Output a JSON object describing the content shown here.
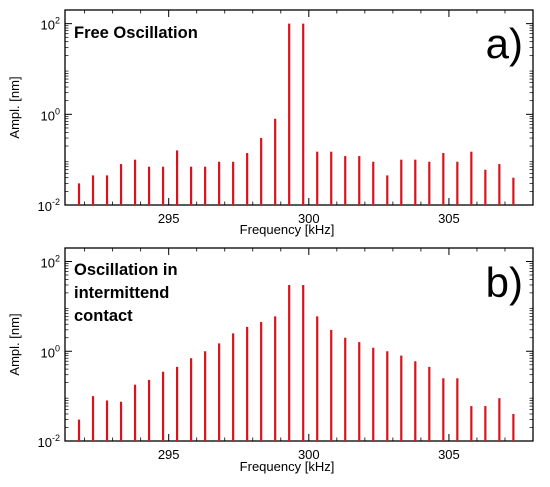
{
  "chart_data": [
    {
      "type": "bar",
      "panel_label": "a)",
      "annotation": "Free Oscillation",
      "xlabel": "Frequency [kHz]",
      "ylabel": "Ampl. [nm]",
      "yscale": "log",
      "ylim": [
        0.01,
        200
      ],
      "xlim": [
        291.3,
        308.0
      ],
      "xticks": [
        295,
        300,
        305
      ],
      "xtick_labels": [
        "295",
        "300",
        "305"
      ],
      "yticks": [
        0.01,
        1,
        100
      ],
      "ytick_labels": [
        {
          "base": "10",
          "exp": "-2"
        },
        {
          "base": "10",
          "exp": "0"
        },
        {
          "base": "10",
          "exp": "2"
        }
      ],
      "grid": false,
      "bar_color": "#d9121b",
      "x": [
        291.8,
        292.3,
        292.8,
        293.3,
        293.8,
        294.3,
        294.8,
        295.3,
        295.8,
        296.3,
        296.8,
        297.3,
        297.8,
        298.3,
        298.8,
        299.3,
        299.8,
        300.3,
        300.8,
        301.3,
        301.8,
        302.3,
        302.8,
        303.3,
        303.8,
        304.3,
        304.8,
        305.3,
        305.8,
        306.3,
        306.8,
        307.3
      ],
      "values": [
        0.03,
        0.045,
        0.045,
        0.08,
        0.1,
        0.07,
        0.07,
        0.16,
        0.07,
        0.07,
        0.09,
        0.09,
        0.14,
        0.3,
        0.8,
        100,
        100,
        0.15,
        0.15,
        0.12,
        0.12,
        0.09,
        0.045,
        0.1,
        0.1,
        0.09,
        0.14,
        0.09,
        0.15,
        0.06,
        0.08,
        0.04
      ]
    },
    {
      "type": "bar",
      "panel_label": "b)",
      "annotation": [
        "Oscillation in",
        "intermittend",
        "contact"
      ],
      "xlabel": "Frequency [kHz]",
      "ylabel": "Ampl. [nm]",
      "yscale": "log",
      "ylim": [
        0.01,
        200
      ],
      "xlim": [
        291.3,
        308.0
      ],
      "xticks": [
        295,
        300,
        305
      ],
      "xtick_labels": [
        "295",
        "300",
        "305"
      ],
      "yticks": [
        0.01,
        1,
        100
      ],
      "ytick_labels": [
        {
          "base": "10",
          "exp": "-2"
        },
        {
          "base": "10",
          "exp": "0"
        },
        {
          "base": "10",
          "exp": "2"
        }
      ],
      "grid": false,
      "bar_color": "#d9121b",
      "x": [
        291.8,
        292.3,
        292.8,
        293.3,
        293.8,
        294.3,
        294.8,
        295.3,
        295.8,
        296.3,
        296.8,
        297.3,
        297.8,
        298.3,
        298.8,
        299.3,
        299.8,
        300.3,
        300.8,
        301.3,
        301.8,
        302.3,
        302.8,
        303.3,
        303.8,
        304.3,
        304.8,
        305.3,
        305.8,
        306.3,
        306.8,
        307.3
      ],
      "values": [
        0.03,
        0.1,
        0.08,
        0.075,
        0.18,
        0.23,
        0.35,
        0.45,
        0.7,
        1.0,
        1.5,
        2.5,
        3.5,
        4.5,
        6,
        30,
        30,
        6,
        3,
        2,
        1.6,
        1.2,
        1.0,
        0.8,
        0.6,
        0.45,
        0.25,
        0.25,
        0.06,
        0.06,
        0.09,
        0.04
      ]
    }
  ]
}
